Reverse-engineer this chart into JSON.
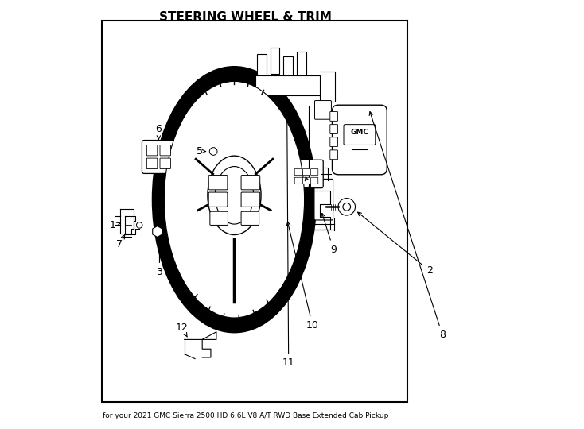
{
  "title": "STEERING WHEEL & TRIM",
  "subtitle": "for your 2021 GMC Sierra 2500 HD 6.6L V8 A/T RWD Base Extended Cab Pickup",
  "background_color": "#ffffff",
  "border_color": "#000000",
  "line_color": "#000000",
  "text_color": "#000000",
  "fig_width": 7.34,
  "fig_height": 5.4,
  "dpi": 100
}
